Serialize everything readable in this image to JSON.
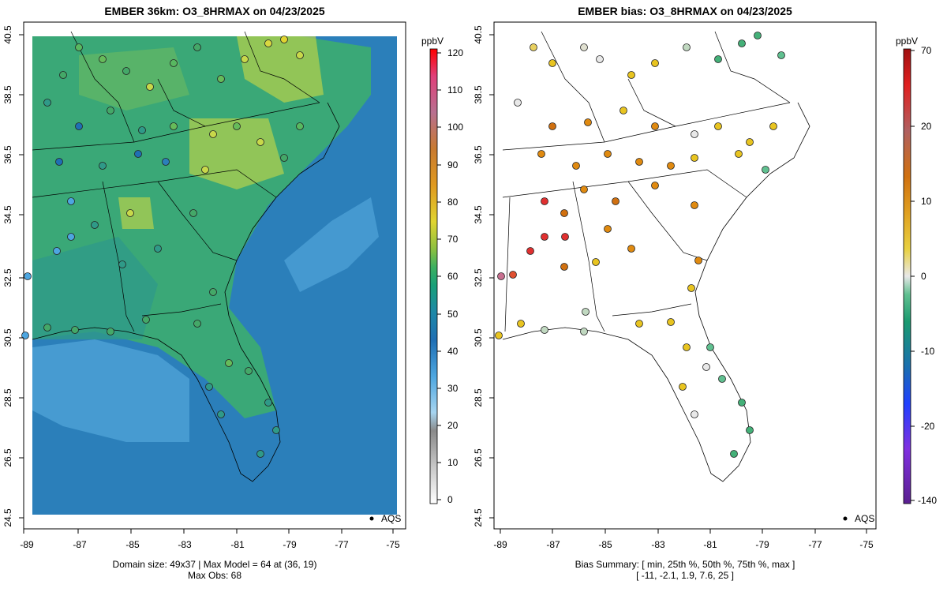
{
  "left_panel": {
    "title": "EMBER 36km: O3_8HRMAX on 04/23/2025",
    "caption_line1": "Domain size: 49x37 | Max Model = 64 at (36, 19)",
    "caption_line2": "Max Obs: 68",
    "legend_label": "AQS",
    "colorbar_unit": "ppbV",
    "colorbar_ticks": [
      "0",
      "10",
      "20",
      "30",
      "40",
      "50",
      "60",
      "70",
      "80",
      "90",
      "100",
      "110",
      "120"
    ]
  },
  "right_panel": {
    "title": "EMBER bias: O3_8HRMAX on 04/23/2025",
    "caption_line1": "Bias Summary: [ min, 25th %, 50th %, 75th %, max ]",
    "caption_line2": "[ -11,   -2.1,   1.9,   7.6,   25 ]",
    "legend_label": "AQS",
    "colorbar_unit": "ppbV",
    "colorbar_ticks": [
      "70",
      "20",
      "10",
      "0",
      "-10",
      "-20",
      "-140"
    ]
  },
  "axes": {
    "x_ticks": [
      "-89",
      "-87",
      "-85",
      "-83",
      "-81",
      "-79",
      "-77",
      "-75"
    ],
    "y_ticks": [
      "24.5",
      "26.5",
      "28.5",
      "30.5",
      "32.5",
      "34.5",
      "36.5",
      "38.5",
      "40.5"
    ]
  },
  "colors": {
    "land_green": "#3aa877",
    "ocean_blue": "#2b7fba",
    "coast_light": "#5aaedc",
    "high_yellow": "#c8d84a",
    "bias_orange": "#e08a10",
    "bias_yellow": "#e8c420",
    "bias_green": "#44b078",
    "bias_red": "#e03030"
  }
}
